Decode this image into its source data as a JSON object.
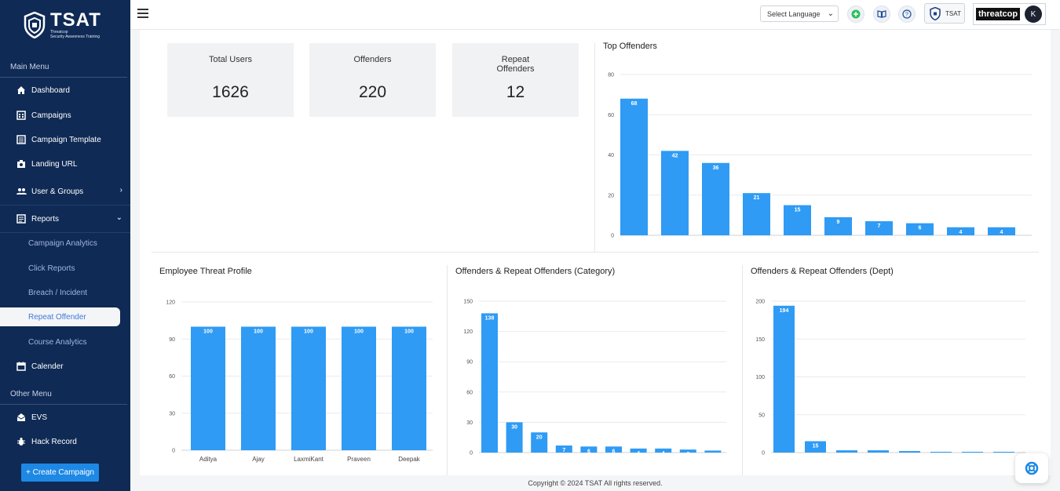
{
  "brand": {
    "name": "TSAT",
    "sub1": "Threatcop",
    "sub2": "Security Awareness Training"
  },
  "sidebar": {
    "main_menu_label": "Main Menu",
    "other_menu_label": "Other Menu",
    "items": [
      {
        "label": "Dashboard",
        "icon": "home-icon"
      },
      {
        "label": "Campaigns",
        "icon": "calendar-grid-icon"
      },
      {
        "label": "Campaign Template",
        "icon": "template-icon"
      },
      {
        "label": "Landing URL",
        "icon": "camera-icon"
      },
      {
        "label": "User & Groups",
        "icon": "users-icon"
      },
      {
        "label": "Reports",
        "icon": "reports-icon"
      },
      {
        "label": "Calender",
        "icon": "calendar-icon"
      },
      {
        "label": "EVS",
        "icon": "envelope-open-icon"
      },
      {
        "label": "Hack Record",
        "icon": "bug-icon"
      }
    ],
    "reports_sub": [
      "Campaign Analytics",
      "Click Reports",
      "Breach / Incident",
      "Repeat Offender",
      "Course Analytics"
    ],
    "active_sub": "Repeat Offender",
    "create_button": "+ Create Campaign"
  },
  "topbar": {
    "language_select": "Select Language",
    "tsat_chip": "TSAT",
    "threatcop_label": "threatcop",
    "avatar_initial": "K"
  },
  "stats": [
    {
      "label": "Total Users",
      "value": "1626"
    },
    {
      "label": "Offenders",
      "value": "220"
    },
    {
      "label": "Repeat Offenders",
      "value": "12"
    }
  ],
  "footer": "Copyright © 2024 TSAT All rights reserved.",
  "colors": {
    "sidebar_bg": "#0f2a55",
    "bar": "#2f9bf4",
    "accent": "#1e88e5"
  },
  "chart_data": [
    {
      "type": "bar",
      "title": "Top Offenders",
      "categories": [
        "",
        "",
        "",
        "",
        "",
        "",
        "",
        "",
        "",
        ""
      ],
      "values": [
        68,
        42,
        36,
        21,
        15,
        9,
        7,
        6,
        4,
        4
      ],
      "ylim": [
        0,
        80
      ],
      "yticks": [
        0,
        20,
        40,
        60,
        80
      ],
      "grid": true
    },
    {
      "type": "bar",
      "title": "Employee Threat Profile",
      "categories": [
        "Aditya",
        "Ajay",
        "LaxmiKant",
        "Praveen",
        "Deepak"
      ],
      "values": [
        100,
        100,
        100,
        100,
        100
      ],
      "ylim": [
        0,
        120
      ],
      "yticks": [
        0,
        30,
        60,
        90,
        120
      ],
      "grid": true
    },
    {
      "type": "bar",
      "title": "Offenders & Repeat Offenders (Category)",
      "categories": [
        "",
        "",
        "",
        "",
        "",
        "",
        "",
        "",
        "",
        ""
      ],
      "values": [
        138,
        30,
        20,
        7,
        6,
        6,
        4,
        4,
        3,
        2
      ],
      "ylim": [
        0,
        150
      ],
      "yticks": [
        0,
        30,
        60,
        90,
        120,
        150
      ],
      "grid": true
    },
    {
      "type": "bar",
      "title": "Offenders & Repeat Offenders (Dept)",
      "categories": [
        "",
        "",
        "",
        "",
        "",
        "",
        "",
        ""
      ],
      "values": [
        194,
        15,
        3,
        3,
        2,
        1,
        1,
        1
      ],
      "ylim": [
        0,
        200
      ],
      "yticks": [
        0,
        50,
        100,
        150,
        200
      ],
      "grid": true
    }
  ]
}
